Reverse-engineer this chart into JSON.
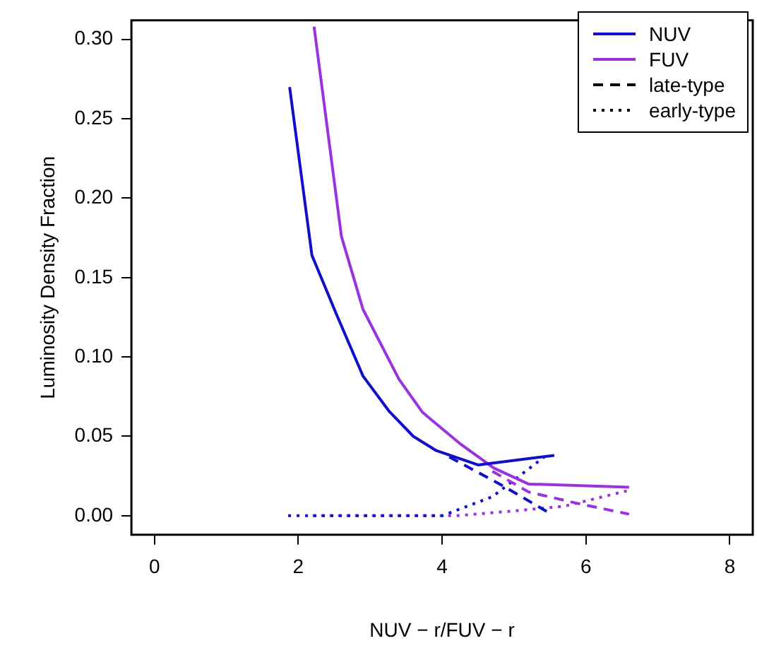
{
  "chart_data": {
    "type": "line",
    "xlabel": "NUV − r/FUV − r",
    "ylabel": "Luminosity Density Fraction",
    "xlim": [
      -0.32,
      8.32
    ],
    "xticks": [
      0,
      2,
      4,
      6,
      8
    ],
    "ylim": [
      -0.012,
      0.312
    ],
    "yticks": [
      {
        "value": 0,
        "label": "0.00"
      },
      {
        "value": 0.05,
        "label": "0.05"
      },
      {
        "value": 0.1,
        "label": "0.10"
      },
      {
        "value": 0.15,
        "label": "0.15"
      },
      {
        "value": 0.2,
        "label": "0.20"
      },
      {
        "value": 0.25,
        "label": "0.25"
      },
      {
        "value": 0.3,
        "label": "0.30"
      }
    ],
    "grid": false,
    "legend": "top right",
    "marker": "none",
    "series": [
      {
        "name": "NUV",
        "color": "#1010c8",
        "line_style": "solid",
        "x": [
          1.88,
          2.19,
          2.53,
          2.9,
          3.26,
          3.6,
          3.92,
          4.5,
          5.56
        ],
        "values": [
          0.27,
          0.164,
          0.127,
          0.088,
          0.066,
          0.05,
          0.041,
          0.032,
          0.038
        ]
      },
      {
        "name": "FUV",
        "color": "#9933dd",
        "line_style": "solid",
        "x": [
          2.22,
          2.6,
          2.9,
          3.4,
          3.73,
          4.26,
          4.72,
          5.2,
          6.6
        ],
        "values": [
          0.308,
          0.176,
          0.13,
          0.086,
          0.065,
          0.045,
          0.03,
          0.02,
          0.018
        ]
      },
      {
        "color": "#1010c8",
        "line_style": "dashed",
        "x": [
          4.1,
          4.8,
          5.52
        ],
        "values": [
          0.037,
          0.02,
          0.001
        ]
      },
      {
        "color": "#9933dd",
        "line_style": "dashed",
        "x": [
          4.7,
          5.2,
          5.86,
          6.6
        ],
        "values": [
          0.028,
          0.015,
          0.008,
          0.001
        ]
      },
      {
        "color": "#1010c8",
        "line_style": "dotted",
        "x": [
          1.86,
          4.0,
          4.7,
          5.42
        ],
        "values": [
          0,
          0,
          0.012,
          0.037
        ]
      },
      {
        "color": "#9933dd",
        "line_style": "dotted",
        "x": [
          2.2,
          4.2,
          5.0,
          5.7,
          6.6
        ],
        "values": [
          0,
          0,
          0.003,
          0.006,
          0.016
        ]
      },
      {
        "name": "late-type",
        "color": "#000000",
        "line_style": "dashed"
      },
      {
        "name": "early-type",
        "color": "#000000",
        "line_style": "dotted"
      }
    ]
  }
}
